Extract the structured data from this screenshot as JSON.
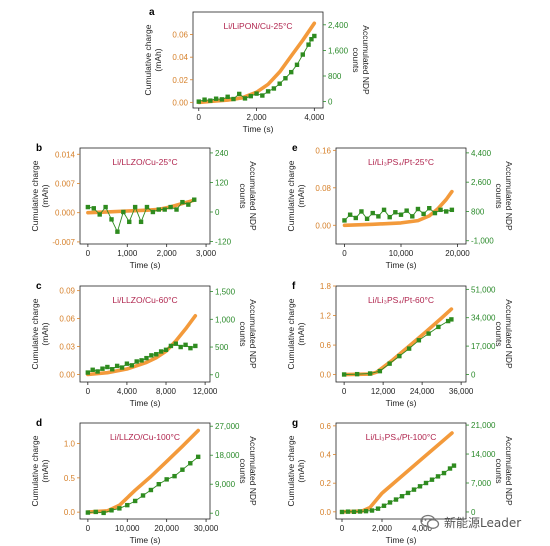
{
  "colors": {
    "charge": "#f39a3b",
    "ndp": "#2e8b1f",
    "title": "#b0254e",
    "left_axis": "#d6802a",
    "right_axis": "#2a8a2a"
  },
  "watermark": {
    "text": "新能源Leader",
    "icon": "wechat-icon"
  },
  "chart_data": [
    {
      "letter": "a",
      "title": "Li/LiPON/Cu-25°C",
      "type": "line",
      "xlabel": "Time (s)",
      "ylabel_left": [
        "Cumulative charge",
        "(mAh)"
      ],
      "ylabel_right": [
        "Accumulated NDP",
        "counts"
      ],
      "xlim": [
        -200,
        4300
      ],
      "ylim_left": [
        -0.005,
        0.08
      ],
      "ylim_right": [
        -200,
        2800
      ],
      "xticks": [
        0,
        2000,
        4000
      ],
      "xtick_labels": [
        "0",
        "2,000",
        "4,000"
      ],
      "yticks_left": [
        0,
        0.02,
        0.04,
        0.06
      ],
      "ytick_labels_left": [
        "0.00",
        "0.02",
        "0.04",
        "0.06"
      ],
      "yticks_right": [
        0,
        800,
        1600,
        2400
      ],
      "ytick_labels_right": [
        "0",
        "800",
        "1,600",
        "2,400"
      ],
      "charge": {
        "x": [
          0,
          500,
          1000,
          1500,
          2000,
          2400,
          2800,
          3200,
          3600,
          4000
        ],
        "y": [
          0,
          0.001,
          0.002,
          0.004,
          0.009,
          0.016,
          0.027,
          0.041,
          0.055,
          0.07
        ]
      },
      "ndp": {
        "x": [
          0,
          200,
          400,
          600,
          800,
          1000,
          1200,
          1400,
          1600,
          1800,
          2000,
          2200,
          2400,
          2600,
          2800,
          3000,
          3200,
          3400,
          3600,
          3800,
          3900,
          4000
        ],
        "y": [
          0,
          60,
          30,
          90,
          70,
          150,
          80,
          240,
          100,
          170,
          250,
          190,
          320,
          410,
          560,
          730,
          920,
          1150,
          1470,
          1780,
          1950,
          2050
        ]
      }
    },
    {
      "letter": "b",
      "title": "Li/LLZO/Cu-25°C",
      "type": "line",
      "xlabel": "Time (s)",
      "ylabel_left": [
        "Cumulative charge",
        "(mAh)"
      ],
      "ylabel_right": [
        "Accumulated NDP",
        "counts"
      ],
      "xlim": [
        -200,
        3100
      ],
      "ylim_left": [
        -0.0075,
        0.0155
      ],
      "ylim_right": [
        -130,
        260
      ],
      "xticks": [
        0,
        1000,
        2000,
        3000
      ],
      "xtick_labels": [
        "0",
        "1,000",
        "2,000",
        "3,000"
      ],
      "yticks_left": [
        -0.007,
        0,
        0.007,
        0.014
      ],
      "ytick_labels_left": [
        "-0.007",
        "0.000",
        "0.007",
        "0.014"
      ],
      "yticks_right": [
        -120,
        0,
        120,
        240
      ],
      "ytick_labels_right": [
        "-120",
        "0",
        "120",
        "240"
      ],
      "charge": {
        "x": [
          0,
          500,
          1000,
          1500,
          1800,
          2100,
          2400,
          2700
        ],
        "y": [
          0,
          0.0002,
          0.0004,
          0.0006,
          0.0008,
          0.0014,
          0.0022,
          0.003
        ]
      },
      "ndp": {
        "x": [
          0,
          150,
          300,
          450,
          600,
          750,
          900,
          1050,
          1200,
          1350,
          1500,
          1650,
          1800,
          1950,
          2100,
          2250,
          2400,
          2550,
          2700
        ],
        "y": [
          20,
          15,
          -10,
          20,
          -30,
          -80,
          0,
          -40,
          20,
          -40,
          20,
          0,
          10,
          10,
          20,
          10,
          40,
          30,
          50
        ]
      }
    },
    {
      "letter": "e",
      "title": "Li/Li₃PS₄/Pt-25°C",
      "type": "line",
      "xlabel": "Time (s)",
      "ylabel_left": [
        "Cumulative charge",
        "(mAh)"
      ],
      "ylabel_right": [
        "Accumulated NDP",
        "counts"
      ],
      "xlim": [
        -1500,
        21500
      ],
      "ylim_left": [
        -0.04,
        0.165
      ],
      "ylim_right": [
        -1200,
        4700
      ],
      "xticks": [
        0,
        10000,
        20000
      ],
      "xtick_labels": [
        "0",
        "10,000",
        "20,000"
      ],
      "yticks_left": [
        0,
        0.08,
        0.16
      ],
      "ytick_labels_left": [
        "0.00",
        "0.08",
        "0.16"
      ],
      "yticks_right": [
        -1000,
        800,
        2600,
        4400
      ],
      "ytick_labels_right": [
        "-1,000",
        "800",
        "2,600",
        "4,400"
      ],
      "charge": {
        "x": [
          0,
          5000,
          10000,
          13000,
          15000,
          16500,
          18000,
          19000
        ],
        "y": [
          0,
          0.002,
          0.005,
          0.01,
          0.02,
          0.035,
          0.055,
          0.072
        ]
      },
      "ndp": {
        "x": [
          0,
          1000,
          2000,
          3000,
          4000,
          5000,
          6000,
          7000,
          8000,
          9000,
          10000,
          11000,
          12000,
          13000,
          14000,
          15000,
          16000,
          17000,
          18000,
          19000
        ],
        "y": [
          250,
          600,
          400,
          800,
          350,
          700,
          500,
          900,
          450,
          750,
          600,
          850,
          500,
          950,
          650,
          1000,
          700,
          900,
          800,
          900
        ]
      }
    },
    {
      "letter": "c",
      "title": "Li/LLZO/Cu-60°C",
      "type": "line",
      "xlabel": "Time (s)",
      "ylabel_left": [
        "Cumulative charge",
        "(mAh)"
      ],
      "ylabel_right": [
        "Accumulated NDP",
        "counts"
      ],
      "xlim": [
        -800,
        12500
      ],
      "ylim_left": [
        -0.008,
        0.095
      ],
      "ylim_right": [
        -130,
        1600
      ],
      "xticks": [
        0,
        4000,
        8000,
        12000
      ],
      "xtick_labels": [
        "0",
        "4,000",
        "8,000",
        "12,000"
      ],
      "yticks_left": [
        0,
        0.03,
        0.06,
        0.09
      ],
      "ytick_labels_left": [
        "0.00",
        "0.03",
        "0.06",
        "0.09"
      ],
      "yticks_right": [
        0,
        500,
        1000,
        1500
      ],
      "ytick_labels_right": [
        "0",
        "500",
        "1,000",
        "1,500"
      ],
      "charge": {
        "x": [
          0,
          2000,
          4000,
          6000,
          7000,
          8000,
          9000,
          10000,
          11000
        ],
        "y": [
          0,
          0.002,
          0.006,
          0.013,
          0.018,
          0.025,
          0.036,
          0.049,
          0.063
        ]
      },
      "ndp": {
        "x": [
          0,
          500,
          1000,
          1500,
          2000,
          2500,
          3000,
          3500,
          4000,
          4500,
          5000,
          5500,
          6000,
          6500,
          7000,
          7500,
          8000,
          8500,
          9000,
          9500,
          10000,
          10500,
          11000
        ],
        "y": [
          40,
          90,
          60,
          110,
          140,
          100,
          160,
          130,
          200,
          170,
          240,
          260,
          300,
          350,
          370,
          420,
          450,
          520,
          560,
          500,
          540,
          480,
          520
        ]
      }
    },
    {
      "letter": "f",
      "title": "Li/Li₃PS₄/Pt-60°C",
      "type": "line",
      "xlabel": "Time (s)",
      "ylabel_left": [
        "Cumulative charge",
        "(mAh)"
      ],
      "ylabel_right": [
        "Accumulated NDP",
        "counts"
      ],
      "xlim": [
        -2500,
        37500
      ],
      "ylim_left": [
        -0.15,
        1.8
      ],
      "ylim_right": [
        -4500,
        53000
      ],
      "xticks": [
        0,
        12000,
        24000,
        36000
      ],
      "xtick_labels": [
        "0",
        "12,000",
        "24,000",
        "36,000"
      ],
      "yticks_left": [
        0,
        0.6,
        1.2,
        1.8
      ],
      "ytick_labels_left": [
        "0.0",
        "0.6",
        "1.2",
        "1.8"
      ],
      "yticks_right": [
        0,
        17000,
        34000,
        51000
      ],
      "ytick_labels_right": [
        "0",
        "17,000",
        "34,000",
        "51,000"
      ],
      "charge": {
        "x": [
          0,
          8000,
          10000,
          15000,
          20000,
          25000,
          30000,
          33000
        ],
        "y": [
          0,
          0.01,
          0.05,
          0.3,
          0.58,
          0.86,
          1.15,
          1.33
        ]
      },
      "ndp": {
        "x": [
          0,
          4000,
          8000,
          11000,
          14000,
          17000,
          20000,
          23000,
          26000,
          29000,
          32000,
          33000
        ],
        "y": [
          0,
          200,
          600,
          2000,
          6500,
          11000,
          15500,
          20500,
          24500,
          28500,
          32000,
          33000
        ]
      }
    },
    {
      "letter": "d",
      "title": "Li/LLZO/Cu-100°C",
      "type": "line",
      "xlabel": "Time (s)",
      "ylabel_left": [
        "Cumulative charge",
        "(mAh)"
      ],
      "ylabel_right": [
        "Accumulated NDP",
        "counts"
      ],
      "xlim": [
        -2000,
        31000
      ],
      "ylim_left": [
        -0.1,
        1.3
      ],
      "ylim_right": [
        -1800,
        28000
      ],
      "xticks": [
        0,
        10000,
        20000,
        30000
      ],
      "xtick_labels": [
        "0",
        "10,000",
        "20,000",
        "30,000"
      ],
      "yticks_left": [
        0,
        0.5,
        1.0
      ],
      "ytick_labels_left": [
        "0.0",
        "0.5",
        "1.0"
      ],
      "yticks_right": [
        0,
        9000,
        18000,
        27000
      ],
      "ytick_labels_right": [
        "0",
        "9,000",
        "18,000",
        "27,000"
      ],
      "charge": {
        "x": [
          0,
          5000,
          8000,
          12000,
          16000,
          20000,
          24000,
          28000
        ],
        "y": [
          0,
          0.02,
          0.1,
          0.32,
          0.52,
          0.74,
          0.96,
          1.19
        ]
      },
      "ndp": {
        "x": [
          0,
          2000,
          4000,
          6000,
          8000,
          10000,
          12000,
          14000,
          16000,
          18000,
          20000,
          22000,
          24000,
          26000,
          28000
        ],
        "y": [
          200,
          400,
          100,
          900,
          1500,
          2500,
          3800,
          5500,
          7200,
          9000,
          10500,
          11500,
          13500,
          15500,
          17500
        ]
      }
    },
    {
      "letter": "g",
      "title": "Li/Li₃PS₄/Pt-100°C",
      "type": "line",
      "xlabel": "Time (s)",
      "ylabel_left": [
        "Cumulative charge",
        "(mAh)"
      ],
      "ylabel_right": [
        "Accumulated NDP",
        "counts"
      ],
      "xlim": [
        -300,
        6200
      ],
      "ylim_left": [
        -0.05,
        0.62
      ],
      "ylim_right": [
        -1700,
        21500
      ],
      "xticks": [
        0,
        2000,
        4000
      ],
      "xtick_labels": [
        "0",
        "2,000",
        "4,000"
      ],
      "yticks_left": [
        0,
        0.2,
        0.4,
        0.6
      ],
      "ytick_labels_left": [
        "0.0",
        "0.2",
        "0.4",
        "0.6"
      ],
      "yticks_right": [
        0,
        7000,
        14000,
        21000
      ],
      "ytick_labels_right": [
        "0",
        "7,000",
        "14,000",
        "21,000"
      ],
      "charge": {
        "x": [
          0,
          1000,
          1400,
          2000,
          3000,
          4000,
          5000,
          5500
        ],
        "y": [
          0,
          0.005,
          0.03,
          0.13,
          0.25,
          0.37,
          0.49,
          0.55
        ]
      },
      "ndp": {
        "x": [
          0,
          300,
          600,
          900,
          1200,
          1500,
          1800,
          2100,
          2400,
          2700,
          3000,
          3300,
          3600,
          3900,
          4200,
          4500,
          4800,
          5100,
          5400,
          5600
        ],
        "y": [
          0,
          80,
          40,
          120,
          200,
          350,
          800,
          1500,
          2300,
          3000,
          3800,
          4600,
          5400,
          6200,
          7000,
          7800,
          8600,
          9400,
          10500,
          11200
        ]
      }
    }
  ]
}
